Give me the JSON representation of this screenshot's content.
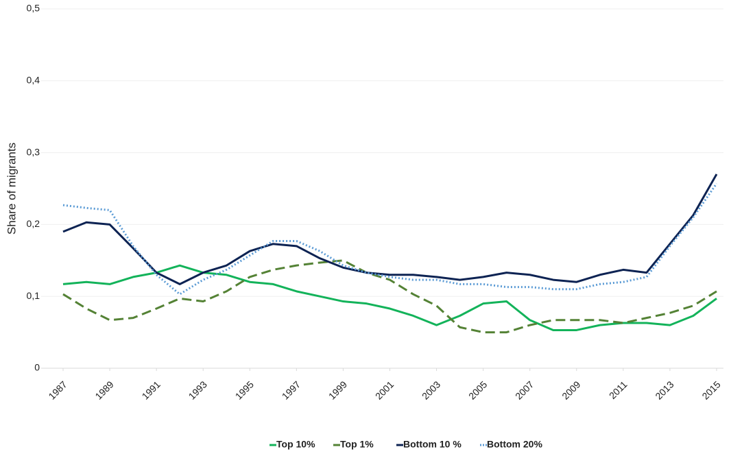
{
  "chart_data": {
    "type": "line",
    "y_label": "Share of migrants",
    "x": [
      1987,
      1988,
      1989,
      1990,
      1991,
      1992,
      1993,
      1994,
      1995,
      1996,
      1997,
      1998,
      1999,
      2000,
      2001,
      2002,
      2003,
      2004,
      2005,
      2006,
      2007,
      2008,
      2009,
      2010,
      2011,
      2012,
      2013,
      2014,
      2015
    ],
    "xlim": [
      1987,
      2015
    ],
    "xticks": [
      1987,
      1989,
      1991,
      1993,
      1995,
      1997,
      1999,
      2001,
      2003,
      2005,
      2007,
      2009,
      2011,
      2013,
      2015
    ],
    "ylim": [
      0,
      0.5
    ],
    "yticks": [
      0,
      {
        "value": 0.1,
        "label": "0,1"
      },
      {
        "value": 0.2,
        "label": "0,2"
      },
      {
        "value": 0.3,
        "label": "0,3"
      },
      {
        "value": 0.4,
        "label": "0,4"
      },
      {
        "value": 0.5,
        "label": "0,5"
      }
    ],
    "grid": true,
    "legend": "bottom",
    "series": [
      {
        "name": "Top 10%",
        "color": "#13b35a",
        "dash": "solid",
        "values": [
          0.117,
          0.12,
          0.117,
          0.127,
          0.133,
          0.143,
          0.133,
          0.13,
          0.12,
          0.117,
          0.107,
          0.1,
          0.093,
          0.09,
          0.083,
          0.073,
          0.06,
          0.073,
          0.09,
          0.093,
          0.067,
          0.053,
          0.053,
          0.06,
          0.063,
          0.063,
          0.06,
          0.073,
          0.097
        ]
      },
      {
        "name": "Top 1%",
        "color": "#548235",
        "dash": "dashed",
        "values": [
          0.103,
          0.083,
          0.067,
          0.07,
          0.083,
          0.097,
          0.093,
          0.107,
          0.127,
          0.137,
          0.143,
          0.147,
          0.15,
          0.133,
          0.123,
          0.103,
          0.087,
          0.057,
          0.05,
          0.05,
          0.06,
          0.067,
          0.067,
          0.067,
          0.063,
          0.07,
          0.077,
          0.087,
          0.107
        ]
      },
      {
        "name": "Bottom 10 %",
        "color": "#0d2353",
        "dash": "solid",
        "values": [
          0.19,
          0.203,
          0.2,
          0.167,
          0.133,
          0.117,
          0.133,
          0.143,
          0.163,
          0.173,
          0.17,
          0.153,
          0.14,
          0.133,
          0.13,
          0.13,
          0.127,
          0.123,
          0.127,
          0.133,
          0.13,
          0.123,
          0.12,
          0.13,
          0.137,
          0.133,
          0.173,
          0.213,
          0.27
        ]
      },
      {
        "name": "Bottom 20%",
        "color": "#5b9bd5",
        "dash": "dotted",
        "values": [
          0.227,
          0.223,
          0.22,
          0.17,
          0.13,
          0.103,
          0.123,
          0.137,
          0.157,
          0.177,
          0.177,
          0.163,
          0.143,
          0.133,
          0.127,
          0.123,
          0.123,
          0.117,
          0.117,
          0.113,
          0.113,
          0.11,
          0.11,
          0.117,
          0.12,
          0.127,
          0.17,
          0.21,
          0.257
        ]
      }
    ]
  }
}
